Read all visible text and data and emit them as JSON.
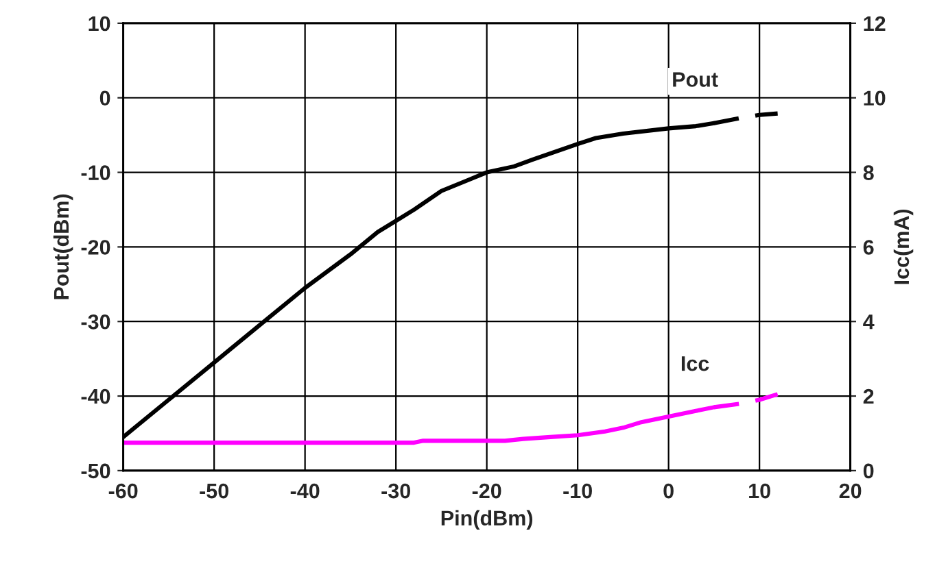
{
  "chart_data": {
    "type": "line",
    "xlabel": "Pin(dBm)",
    "ylabel": "Pout(dBm)",
    "y2label": "Icc(mA)",
    "xlim": [
      -60,
      20
    ],
    "xticks": [
      -60,
      -50,
      -40,
      -30,
      -20,
      -10,
      0,
      10,
      20
    ],
    "ylim": [
      -50,
      10
    ],
    "yticks": [
      -50,
      -40,
      -30,
      -20,
      -10,
      0,
      10
    ],
    "y2lim": [
      0,
      12
    ],
    "y2ticks": [
      0,
      2,
      4,
      6,
      8,
      10,
      12
    ],
    "grid": true,
    "legend": false,
    "marker": "none",
    "series": [
      {
        "name": "Pout",
        "color": "#000000",
        "line_style": "solid",
        "x": [
          -60,
          -55,
          -50,
          -45,
          -40,
          -35,
          -32,
          -30,
          -28,
          -25,
          -22,
          -20,
          -17,
          -15,
          -10,
          -8,
          -5,
          0,
          3,
          5
        ],
        "values": [
          -45.5,
          -40.5,
          -35.5,
          -30.5,
          -25.5,
          -21,
          -18,
          -16.5,
          -15,
          -12.5,
          -11,
          -10,
          -9.2,
          -8.3,
          -6.2,
          -5.4,
          -4.8,
          -4.1,
          -3.8,
          -3.4
        ]
      },
      {
        "color": "#000000",
        "line_style": "dashed",
        "x": [
          5,
          8,
          10,
          12
        ],
        "values": [
          -3.4,
          -2.7,
          -2.3,
          -2.1
        ]
      },
      {
        "name": "Icc",
        "color": "#ff00ff",
        "axis": "y2",
        "line_style": "solid",
        "x": [
          -60,
          -50,
          -40,
          -30,
          -28,
          -27,
          -20,
          -18,
          -16,
          -13,
          -10,
          -7,
          -5,
          -3,
          0,
          3,
          5
        ],
        "values": [
          0.75,
          0.75,
          0.75,
          0.75,
          0.75,
          0.8,
          0.8,
          0.8,
          0.85,
          0.9,
          0.95,
          1.05,
          1.15,
          1.3,
          1.45,
          1.6,
          1.7
        ]
      },
      {
        "color": "#ff00ff",
        "axis": "y2",
        "line_style": "dashed",
        "x": [
          5,
          8,
          10,
          12
        ],
        "values": [
          1.7,
          1.8,
          1.9,
          2.05
        ]
      }
    ]
  }
}
